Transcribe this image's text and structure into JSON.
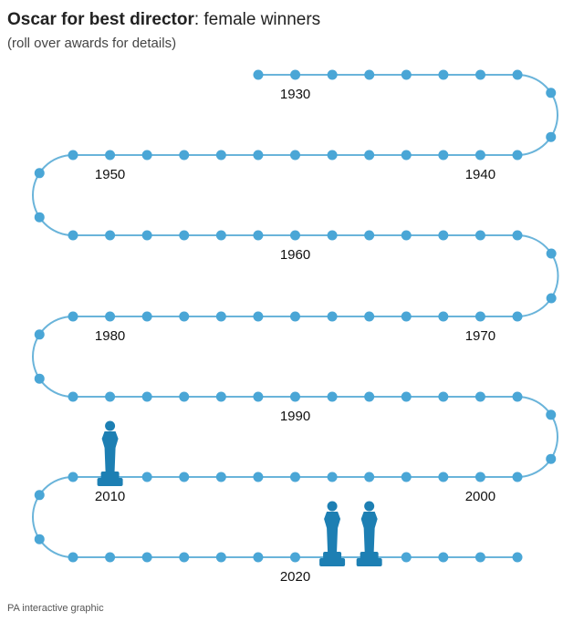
{
  "header": {
    "title_bold": "Oscar for best director",
    "title_rest": ": female winners",
    "subtitle": "(roll over awards for details)"
  },
  "timeline": {
    "decade_labels": [
      1930,
      1940,
      1950,
      1960,
      1970,
      1980,
      1990,
      2000,
      2010,
      2020
    ],
    "winner_years": [
      2010,
      2021,
      2022
    ]
  },
  "footer": "PA interactive graphic"
}
